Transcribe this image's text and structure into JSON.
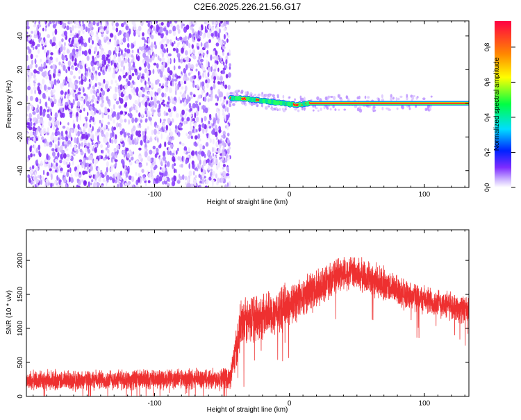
{
  "title": "C2E6.2025.226.21.56.G17",
  "chart_data": [
    {
      "type": "heatmap",
      "xlabel": "Height of straight line (km)",
      "ylabel": "Frequency (Hz)",
      "xlim": [
        -195,
        133
      ],
      "ylim": [
        -50,
        49
      ],
      "xticks": [
        -100,
        0,
        100
      ],
      "yticks": [
        -40,
        -20,
        0,
        20,
        40
      ],
      "noise_region_x": [
        -195,
        -44
      ],
      "signal_ridge": {
        "description_points_x": [
          -44,
          -35,
          -25,
          -15,
          -5,
          5,
          15,
          50,
          100,
          133
        ],
        "frequency_hz": [
          3,
          3,
          2,
          1,
          0,
          -1,
          0,
          0,
          0,
          0
        ]
      },
      "colorbar": {
        "label": "Normalized spectral amplitude",
        "range": [
          0.0,
          0.95
        ],
        "ticks": [
          0.0,
          0.2,
          0.4,
          0.6,
          0.8
        ],
        "tick_labels": [
          "0.0",
          "0.2",
          "0.4",
          "0.6",
          "0.8"
        ],
        "colors": [
          "#ffffff",
          "#c9b0ff",
          "#7e2cff",
          "#0022ff",
          "#00ddff",
          "#00ff44",
          "#ffff00",
          "#ff8800",
          "#ff0044"
        ]
      },
      "grid": false
    },
    {
      "type": "line",
      "xlabel": "Height of straight line (km)",
      "ylabel": "SNR (10 * v/v)",
      "xlim": [
        -195,
        133
      ],
      "ylim": [
        0,
        2450
      ],
      "xticks": [
        -100,
        0,
        100
      ],
      "yticks": [
        0,
        500,
        1000,
        1500,
        2000
      ],
      "line_color": "#ee3030",
      "envelope": {
        "x": [
          -195,
          -150,
          -100,
          -60,
          -44,
          -40,
          -36,
          -30,
          -20,
          -10,
          0,
          10,
          20,
          30,
          40,
          50,
          60,
          70,
          80,
          90,
          100,
          110,
          120,
          133
        ],
        "mean": [
          230,
          240,
          250,
          260,
          270,
          650,
          1050,
          1100,
          1180,
          1250,
          1350,
          1470,
          1600,
          1720,
          1820,
          1800,
          1720,
          1650,
          1560,
          1480,
          1420,
          1370,
          1330,
          1250
        ],
        "spread": [
          170,
          170,
          170,
          180,
          180,
          350,
          420,
          420,
          400,
          380,
          360,
          340,
          320,
          300,
          290,
          290,
          290,
          280,
          260,
          250,
          240,
          240,
          240,
          230
        ]
      },
      "grid": false
    }
  ]
}
